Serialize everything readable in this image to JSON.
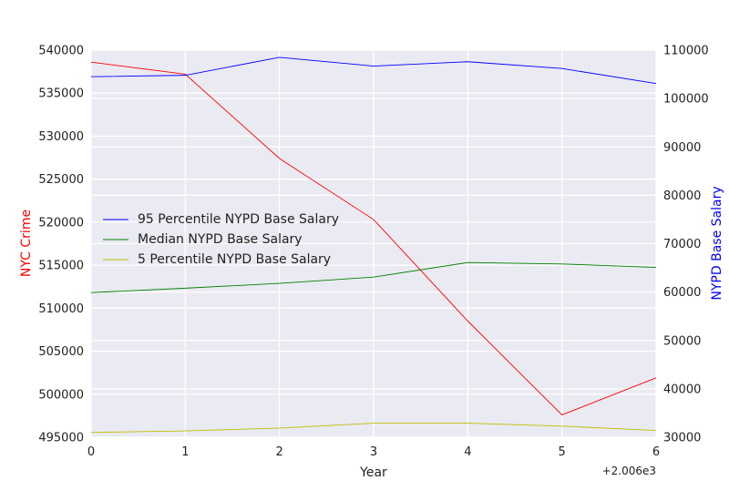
{
  "chart_data": {
    "type": "line",
    "title": "",
    "xlabel": "Year",
    "x_offset_label": "+2.006e3",
    "x": [
      0,
      1,
      2,
      3,
      4,
      5,
      6
    ],
    "xticks": [
      "0",
      "1",
      "2",
      "3",
      "4",
      "5",
      "6"
    ],
    "xlim": [
      0,
      6
    ],
    "grid": true,
    "left_axis": {
      "label": "NYC Crime",
      "label_color": "#ff0000",
      "ylim": [
        495000,
        540000
      ],
      "ticks": [
        "495000",
        "500000",
        "505000",
        "510000",
        "515000",
        "520000",
        "525000",
        "530000",
        "535000",
        "540000"
      ],
      "tick_values": [
        495000,
        500000,
        505000,
        510000,
        515000,
        520000,
        525000,
        530000,
        535000,
        540000
      ]
    },
    "right_axis": {
      "label": "NYPD Base Salary",
      "label_color": "#0000ff",
      "ylim": [
        30000,
        110000
      ],
      "ticks": [
        "30000",
        "40000",
        "50000",
        "60000",
        "70000",
        "80000",
        "90000",
        "100000",
        "110000"
      ],
      "tick_values": [
        30000,
        40000,
        50000,
        60000,
        70000,
        80000,
        90000,
        100000,
        110000
      ]
    },
    "series": [
      {
        "name": "NYC Crime",
        "axis": "left",
        "color": "#ff0000",
        "in_legend": false,
        "values": [
          538600,
          537200,
          527400,
          520300,
          508500,
          497600,
          501900
        ]
      },
      {
        "name": "95 Percentile NYPD Base Salary",
        "axis": "right",
        "color": "#0000ff",
        "in_legend": true,
        "values": [
          104500,
          104800,
          108500,
          106700,
          107600,
          106200,
          103100
        ]
      },
      {
        "name": "Median NYPD Base Salary",
        "axis": "right",
        "color": "#008000",
        "in_legend": true,
        "values": [
          59900,
          60800,
          61800,
          63100,
          66100,
          65800,
          65100
        ]
      },
      {
        "name": "5 Percentile NYPD Base Salary",
        "axis": "right",
        "color": "#bfbf00",
        "in_legend": true,
        "values": [
          31000,
          31300,
          31900,
          32900,
          32900,
          32300,
          31400
        ]
      }
    ],
    "legend_position": "center-left"
  }
}
